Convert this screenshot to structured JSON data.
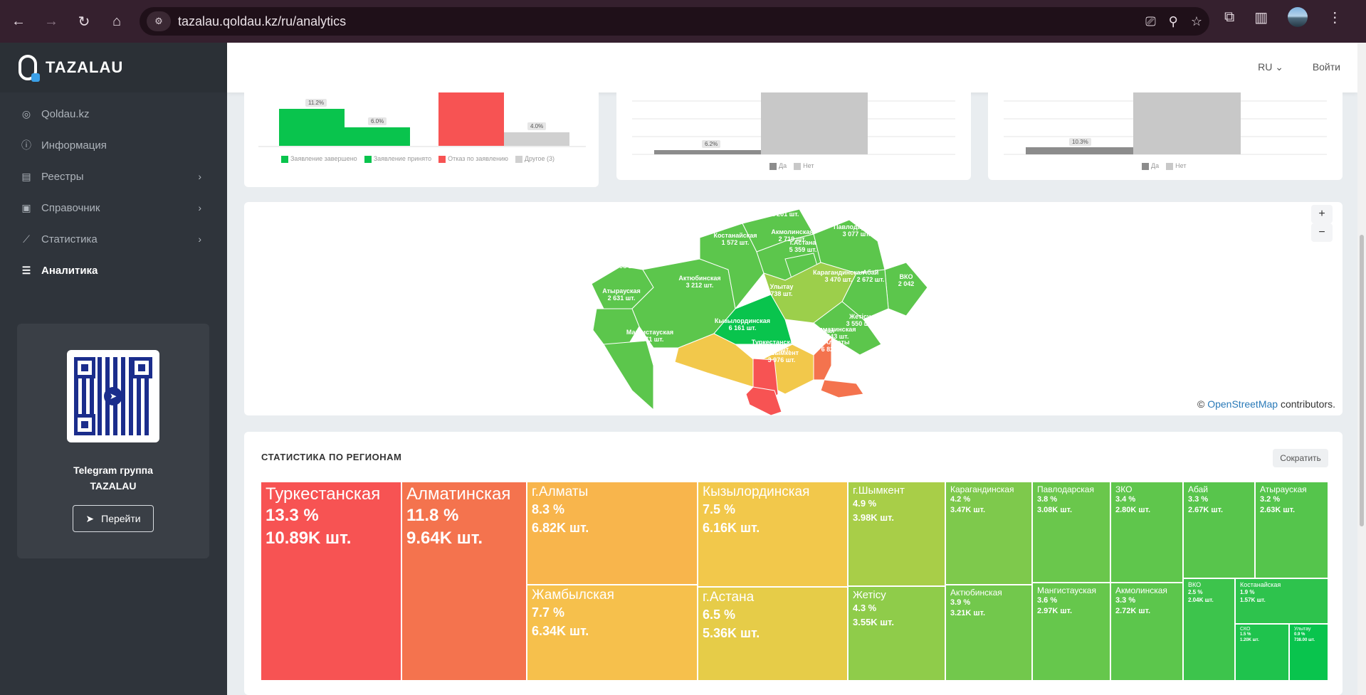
{
  "browser": {
    "url": "tazalau.qoldau.kz/ru/analytics"
  },
  "sidebar": {
    "logo_text": "TAZALAU",
    "items": [
      {
        "label": "Qoldau.kz",
        "icon": "qoldau-icon"
      },
      {
        "label": "Информация",
        "icon": "info-icon"
      },
      {
        "label": "Реестры",
        "icon": "registry-icon"
      },
      {
        "label": "Справочник",
        "icon": "directory-icon"
      },
      {
        "label": "Статистика",
        "icon": "chart-icon"
      },
      {
        "label": "Аналитика",
        "icon": "analytics-icon"
      }
    ],
    "telegram": {
      "title_line1": "Telegram группа",
      "title_line2": "TAZALAU",
      "button": "Перейти"
    }
  },
  "header": {
    "lang": "RU",
    "login": "Войти"
  },
  "charts_top": {
    "chart1": {
      "labels": [
        "11.2%",
        "6.0%",
        "4.0%"
      ],
      "legend": [
        "Заявление завершено",
        "Заявление принято",
        "Отказ по заявлению",
        "Другое (3)"
      ]
    },
    "chart2": {
      "label": "6.2%",
      "legend": [
        "Да",
        "Нет"
      ]
    },
    "chart3": {
      "label": "10.3%",
      "legend": [
        "Да",
        "Нет"
      ]
    }
  },
  "chart_data": [
    {
      "type": "bar",
      "categories": [
        "Заявление завершено",
        "Заявление принято",
        "Отказ по заявлению",
        "Другое (3)"
      ],
      "values": [
        11.2,
        6.0,
        null,
        4.0
      ]
    },
    {
      "type": "bar",
      "categories": [
        "Да",
        "Нет"
      ],
      "values": [
        6.2,
        null
      ]
    },
    {
      "type": "bar",
      "categories": [
        "Да",
        "Нет"
      ],
      "values": [
        10.3,
        null
      ]
    }
  ],
  "map": {
    "attribution_link": "OpenStreetMap",
    "attribution_rest": "contributors.",
    "attribution_prefix": "©",
    "zoom_in": "+",
    "zoom_out": "−",
    "regions": [
      {
        "name": "СКО",
        "value": "1 201 шт."
      },
      {
        "name": "Костанайская",
        "value": "1 572 шт."
      },
      {
        "name": "Акмолинская",
        "value": "2 719 шт."
      },
      {
        "name": "г.Астана",
        "value": "5 359 шт."
      },
      {
        "name": "Павлодарская",
        "value": "3 077 шт."
      },
      {
        "name": "ЗКО",
        "value": "2 798 шт."
      },
      {
        "name": "Актюбинская",
        "value": "3 212 шт."
      },
      {
        "name": "Карагандинская",
        "value": "3 470 шт."
      },
      {
        "name": "Абай",
        "value": "2 672 шт."
      },
      {
        "name": "ВКО",
        "value": "2 042"
      },
      {
        "name": "Атырауская",
        "value": "2 631 шт."
      },
      {
        "name": "Улытау",
        "value": "738 шт."
      },
      {
        "name": "Мангистауская",
        "value": "2 971 шт."
      },
      {
        "name": "Кызылординская",
        "value": "6 161 шт."
      },
      {
        "name": "Жетісу",
        "value": "3 550 шт."
      },
      {
        "name": "Жамбылская",
        "value": "6 340 шт."
      },
      {
        "name": "Алматинская",
        "value": "9 643 шт."
      },
      {
        "name": "Туркестанская",
        "value": "10 889 шт."
      },
      {
        "name": "г.Алматы",
        "value": "6 820 шт."
      },
      {
        "name": "г.Шымкент",
        "value": "3 976 шт."
      }
    ]
  },
  "regions_stats": {
    "title": "СТАТИСТИКА ПО РЕГИОНАМ",
    "collapse": "Сократить",
    "tiles": [
      {
        "name": "Туркестанская",
        "pct": "13.3 %",
        "count": "10.89K шт."
      },
      {
        "name": "Алматинская",
        "pct": "11.8 %",
        "count": "9.64K шт."
      },
      {
        "name": "г.Алматы",
        "pct": "8.3 %",
        "count": "6.82K шт."
      },
      {
        "name": "Жамбылская",
        "pct": "7.7 %",
        "count": "6.34K шт."
      },
      {
        "name": "Кызылординская",
        "pct": "7.5 %",
        "count": "6.16K шт."
      },
      {
        "name": "г.Астана",
        "pct": "6.5 %",
        "count": "5.36K шт."
      },
      {
        "name": "г.Шымкент",
        "pct": "4.9 %",
        "count": "3.98K шт."
      },
      {
        "name": "Жетісу",
        "pct": "4.3 %",
        "count": "3.55K шт."
      },
      {
        "name": "Карагандинская",
        "pct": "4.2 %",
        "count": "3.47K шт."
      },
      {
        "name": "Актюбинская",
        "pct": "3.9 %",
        "count": "3.21K шт."
      },
      {
        "name": "Павлодарская",
        "pct": "3.8 %",
        "count": "3.08K шт."
      },
      {
        "name": "Мангистауская",
        "pct": "3.6 %",
        "count": "2.97K шт."
      },
      {
        "name": "ЗКО",
        "pct": "3.4 %",
        "count": "2.80K шт."
      },
      {
        "name": "Акмолинская",
        "pct": "3.3 %",
        "count": "2.72K шт."
      },
      {
        "name": "Абай",
        "pct": "3.3 %",
        "count": "2.67K шт."
      },
      {
        "name": "Атырауская",
        "pct": "3.2 %",
        "count": "2.63K шт."
      },
      {
        "name": "ВКО",
        "pct": "2.5 %",
        "count": "2.04K шт."
      },
      {
        "name": "Костанайская",
        "pct": "1.9 %",
        "count": "1.57K шт."
      },
      {
        "name": "СКО",
        "pct": "1.5 %",
        "count": "1.20K шт."
      },
      {
        "name": "Улытау",
        "pct": "0.9 %",
        "count": "738.00 шт."
      }
    ]
  },
  "colors": {
    "red": "#f75353",
    "orange": "#f4734e",
    "amber": "#f8b54c",
    "yellow": "#f2c84b",
    "lime": "#9ccf4b",
    "green": "#5cc64c",
    "bright_green": "#09c44d"
  }
}
